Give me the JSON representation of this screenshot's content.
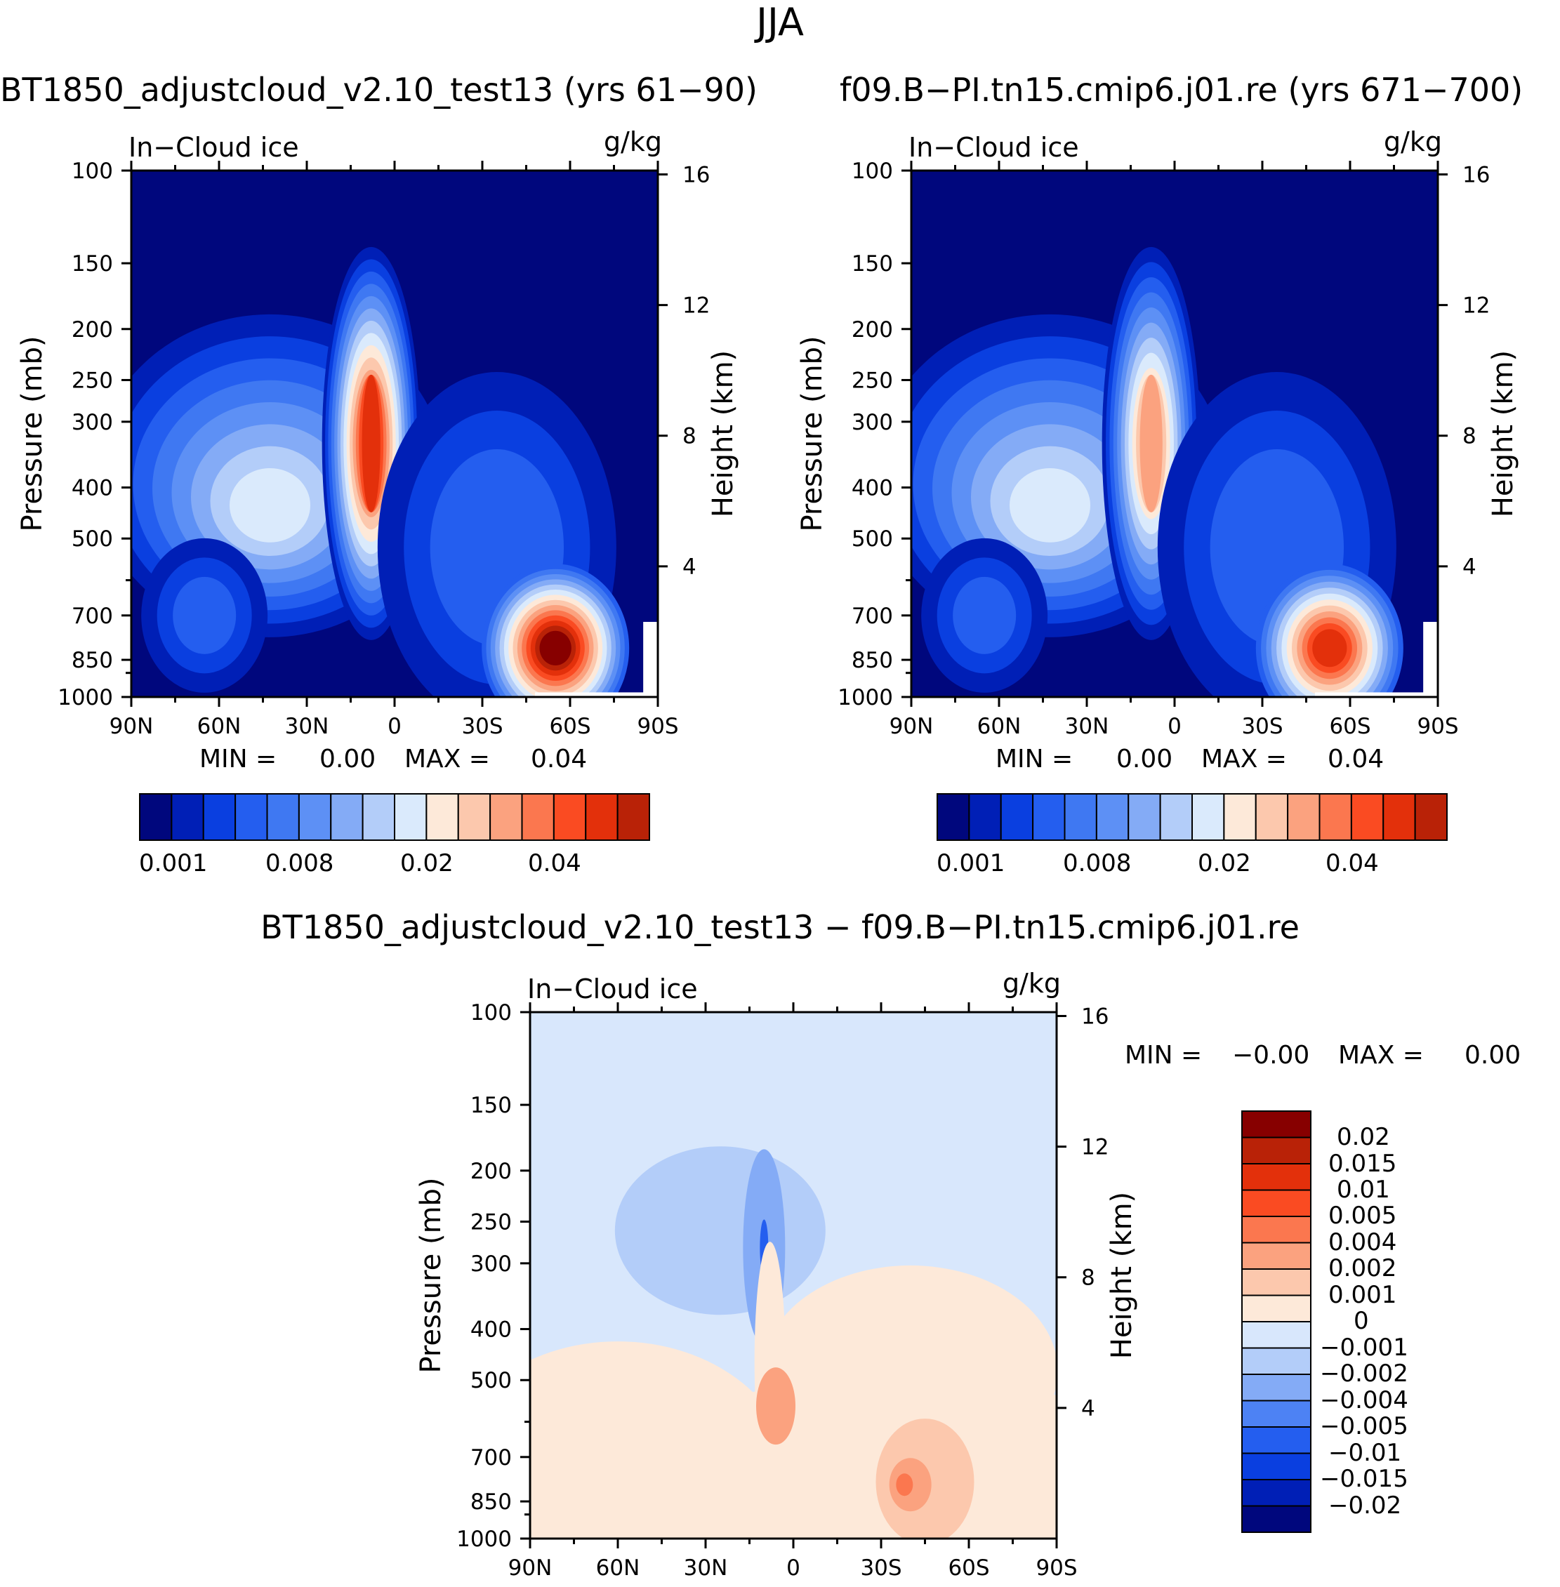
{
  "figure": {
    "title": "JJA",
    "colors": {
      "seq": [
        "#00077d",
        "#001fb6",
        "#0a3fe0",
        "#245eef",
        "#3f78f2",
        "#5d90f5",
        "#84abf6",
        "#b3cdf9",
        "#daeafc",
        "#fde9d9",
        "#fcc8ad",
        "#fba27f",
        "#fb774f",
        "#fa4b22",
        "#e3300b",
        "#b92207",
        "#870000"
      ],
      "diff": [
        "#00077d",
        "#001fb6",
        "#0a3fe0",
        "#245eef",
        "#4d82f4",
        "#84abf6",
        "#b3cdf9",
        "#d8e7fc",
        "#fde9d9",
        "#fcc8ad",
        "#fba27f",
        "#fb774f",
        "#fa4b22",
        "#e3300b",
        "#b92207",
        "#870000"
      ]
    }
  },
  "chart_data": [
    {
      "type": "heatmap",
      "panel": "top-left",
      "case_title": "BT1850_adjustcloud_v2.10_test13 (yrs 61−90)",
      "variable_label": "In−Cloud ice",
      "units_label": "g/kg",
      "xlabel": "",
      "ylabel": "Pressure (mb)",
      "y2label": "Height (km)",
      "x_ticklabels": [
        "90N",
        "60N",
        "30N",
        "0",
        "30S",
        "60S",
        "90S"
      ],
      "x_values": [
        90,
        60,
        30,
        0,
        -30,
        -60,
        -90
      ],
      "y_ticklabels": [
        "100",
        "150",
        "200",
        "250",
        "300",
        "400",
        "500",
        "700",
        "850",
        "1000"
      ],
      "y2_ticklabels": [
        "16",
        "12",
        "8",
        "4"
      ],
      "ylim": [
        1000,
        100
      ],
      "min_label": "MIN =",
      "min_value": "0.00",
      "max_label": "MAX =",
      "max_value": "0.04",
      "colorbar_labels": [
        "0.001",
        "0.008",
        "0.02",
        "0.04"
      ],
      "features": [
        {
          "name": "tropical deep ice column",
          "lat": 8,
          "p_top": 175,
          "p_bottom": 580,
          "peak_level": 14
        },
        {
          "name": "NH midlatitude ice cloud",
          "lat": 45,
          "p_top": 200,
          "p_bottom": 700,
          "peak_level": 8
        },
        {
          "name": "SH low-level ice maximum",
          "lat": -55,
          "p_center": 820,
          "peak_value": 0.04,
          "peak_level": 16
        }
      ]
    },
    {
      "type": "heatmap",
      "panel": "top-right",
      "case_title": "f09.B−PI.tn15.cmip6.j01.re (yrs 671−700)",
      "variable_label": "In−Cloud ice",
      "units_label": "g/kg",
      "xlabel": "",
      "ylabel": "Pressure (mb)",
      "y2label": "Height (km)",
      "x_ticklabels": [
        "90N",
        "60N",
        "30N",
        "0",
        "30S",
        "60S",
        "90S"
      ],
      "x_values": [
        90,
        60,
        30,
        0,
        -30,
        -60,
        -90
      ],
      "y_ticklabels": [
        "100",
        "150",
        "200",
        "250",
        "300",
        "400",
        "500",
        "700",
        "850",
        "1000"
      ],
      "y2_ticklabels": [
        "16",
        "12",
        "8",
        "4"
      ],
      "ylim": [
        1000,
        100
      ],
      "min_label": "MIN =",
      "min_value": "0.00",
      "max_label": "MAX =",
      "max_value": "0.04",
      "colorbar_labels": [
        "0.001",
        "0.008",
        "0.02",
        "0.04"
      ],
      "features": [
        {
          "name": "tropical deep ice column",
          "lat": 8,
          "p_top": 165,
          "p_bottom": 580,
          "peak_level": 11
        },
        {
          "name": "NH midlatitude ice cloud",
          "lat": 45,
          "p_top": 200,
          "p_bottom": 700,
          "peak_level": 8
        },
        {
          "name": "SH low-level ice maximum",
          "lat": -53,
          "p_center": 810,
          "peak_value": 0.035,
          "peak_level": 14
        }
      ]
    },
    {
      "type": "heatmap",
      "panel": "bottom-difference",
      "case_title": "BT1850_adjustcloud_v2.10_test13 − f09.B−PI.tn15.cmip6.j01.re",
      "variable_label": "In−Cloud ice",
      "units_label": "g/kg",
      "xlabel": "",
      "ylabel": "Pressure (mb)",
      "y2label": "Height (km)",
      "x_ticklabels": [
        "90N",
        "60N",
        "30N",
        "0",
        "30S",
        "60S",
        "90S"
      ],
      "x_values": [
        90,
        60,
        30,
        0,
        -30,
        -60,
        -90
      ],
      "y_ticklabels": [
        "100",
        "150",
        "200",
        "250",
        "300",
        "400",
        "500",
        "700",
        "850",
        "1000"
      ],
      "y2_ticklabels": [
        "16",
        "12",
        "8",
        "4"
      ],
      "ylim": [
        1000,
        100
      ],
      "min_label": "MIN =",
      "min_value": "−0.00",
      "max_label": "MAX =",
      "max_value": "0.00",
      "colorbar_labels": [
        "0.02",
        "0.015",
        "0.01",
        "0.005",
        "0.004",
        "0.002",
        "0.001",
        "0",
        "−0.001",
        "−0.002",
        "−0.004",
        "−0.005",
        "−0.01",
        "−0.015",
        "−0.02"
      ],
      "features": [
        {
          "name": "negative anomaly over tropical upper troposphere",
          "lat": 10,
          "p_top": 180,
          "p_bottom": 500,
          "min_value": -0.005
        },
        {
          "name": "positive anomaly near equator mid levels",
          "lat": 6,
          "p_center": 560,
          "value": 0.004
        },
        {
          "name": "positive anomaly SH lower troposphere",
          "lat": -45,
          "p_center": 780,
          "value": 0.005
        }
      ]
    }
  ]
}
